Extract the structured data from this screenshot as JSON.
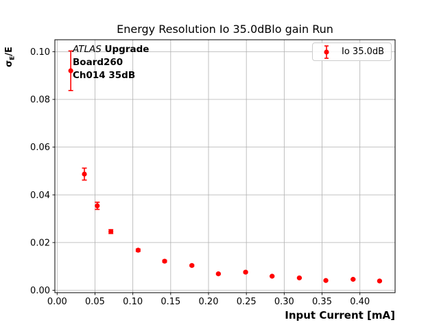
{
  "chart_data": {
    "type": "scatter",
    "title": "Energy Resolution Io 35.0dBlo gain Run",
    "xlabel": "Input Current [mA]",
    "ylabel": "σE/E",
    "ylabel_parts": {
      "sigma": "σ",
      "subscript": "E",
      "rest": "/E"
    },
    "grid": true,
    "xlim": [
      -0.003,
      0.4465
    ],
    "ylim": [
      -0.001,
      0.105
    ],
    "x_ticks": [
      0.0,
      0.05,
      0.1,
      0.15,
      0.2,
      0.25,
      0.3,
      0.35,
      0.4
    ],
    "x_tick_labels": [
      "0.00",
      "0.05",
      "0.10",
      "0.15",
      "0.20",
      "0.25",
      "0.30",
      "0.35",
      "0.40"
    ],
    "y_ticks": [
      0.0,
      0.02,
      0.04,
      0.06,
      0.08,
      0.1
    ],
    "y_tick_labels": [
      "0.00",
      "0.02",
      "0.04",
      "0.06",
      "0.08",
      "0.10"
    ],
    "series": [
      {
        "name": "Io 35.0dB",
        "color": "#ff0000",
        "marker": "circle",
        "x": [
          0.018,
          0.036,
          0.053,
          0.071,
          0.107,
          0.142,
          0.178,
          0.213,
          0.249,
          0.284,
          0.32,
          0.355,
          0.391,
          0.426
        ],
        "y": [
          0.092,
          0.0487,
          0.0354,
          0.0246,
          0.0168,
          0.0122,
          0.0104,
          0.0069,
          0.0076,
          0.0059,
          0.0052,
          0.0041,
          0.0046,
          0.0039
        ],
        "yerr": [
          0.0083,
          0.0025,
          0.0015,
          0.0008,
          0.0005,
          0.0004,
          0.0003,
          0.0003,
          0.0003,
          0.0002,
          0.0002,
          0.0002,
          0.0002,
          0.0002
        ]
      }
    ],
    "legend": {
      "label": "Io 35.0dB",
      "position": "upper right"
    },
    "annotation": {
      "line1_italic": "ATLAS",
      "line1_bold": " Upgrade",
      "line2": "Board260",
      "line3": "Ch014 35dB"
    }
  },
  "colors": {
    "marker": "#ff0000",
    "grid": "#b0b0b0",
    "spine": "#000000",
    "legend_border": "#cccccc",
    "background": "#ffffff"
  }
}
